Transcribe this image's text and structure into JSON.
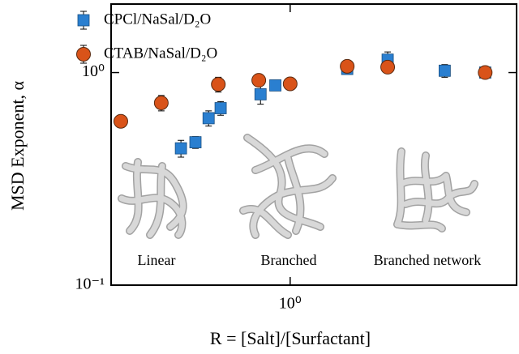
{
  "chart_data": {
    "type": "scatter",
    "x_label": "R = [Salt]/[Surfactant]",
    "y_label": "MSD Exponent, α",
    "log_x": true,
    "log_y": true,
    "xlim": [
      0.28,
      5
    ],
    "ylim": [
      0.1,
      2.1
    ],
    "xticks": [
      {
        "value": 1,
        "label": "10⁰"
      }
    ],
    "yticks": [
      {
        "value": 0.1,
        "label": "10⁻¹"
      },
      {
        "value": 1,
        "label": "10⁰"
      }
    ],
    "legend": "upper left",
    "annotations": [
      "Linear",
      "Branched",
      "Branched network"
    ],
    "series": [
      {
        "name": "CPCl/NaSal/D₂O",
        "color": "#2a7fd0",
        "marker": "square",
        "x": [
          0.46,
          0.51,
          0.56,
          0.61,
          0.81,
          0.9,
          1.5,
          2,
          3,
          4
        ],
        "values": [
          0.44,
          0.47,
          0.61,
          0.68,
          0.79,
          0.87,
          1.04,
          1.15,
          1.02,
          1.0
        ],
        "errors": [
          0.04,
          0.03,
          0.05,
          0.05,
          0.08,
          0.03,
          0.05,
          0.1,
          0.07,
          0.05
        ]
      },
      {
        "name": "CTAB/NaSal/D₂O",
        "color": "#d95319",
        "marker": "circle",
        "x": [
          0.3,
          0.4,
          0.6,
          0.8,
          1,
          1.5,
          2,
          4
        ],
        "values": [
          0.59,
          0.72,
          0.88,
          0.92,
          0.885,
          1.07,
          1.06,
          1.0
        ],
        "errors": [
          0.03,
          0.06,
          0.07,
          0.03,
          0.03,
          0.05,
          0.04,
          0.04
        ]
      }
    ]
  }
}
